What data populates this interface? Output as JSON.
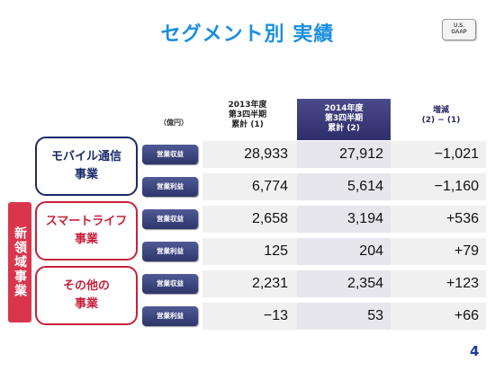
{
  "title": "セグメント別 実績",
  "badge": {
    "line1": "U.S.",
    "line2": "GAAP"
  },
  "unit": "（億円）",
  "columns": [
    {
      "line1": "2013年度",
      "line2": "第3四半期",
      "line3": "累計 (1)"
    },
    {
      "line1": "2014年度",
      "line2": "第3四半期",
      "line3": "累計 (2)"
    },
    {
      "line1": "増減",
      "line2": "(2) − (1)"
    }
  ],
  "new_domain_label": "新領域事業",
  "segments": [
    {
      "line1": "モバイル通信",
      "line2": "事業"
    },
    {
      "line1": "スマートライフ",
      "line2": "事業"
    },
    {
      "line1": "その他の",
      "line2": "事業"
    }
  ],
  "rows": [
    {
      "metric": "営業収益",
      "v2013": "28,933",
      "v2014": "27,912",
      "diff": "−1,021"
    },
    {
      "metric": "営業利益",
      "v2013": "6,774",
      "v2014": "5,614",
      "diff": "−1,160"
    },
    {
      "metric": "営業収益",
      "v2013": "2,658",
      "v2014": "3,194",
      "diff": "+536"
    },
    {
      "metric": "営業利益",
      "v2013": "125",
      "v2014": "204",
      "diff": "+79"
    },
    {
      "metric": "営業収益",
      "v2013": "2,231",
      "v2014": "2,354",
      "diff": "+123"
    },
    {
      "metric": "営業利益",
      "v2013": "−13",
      "v2014": "53",
      "diff": "+66"
    }
  ],
  "page_number": "4",
  "colors": {
    "title": "#1a8fe0",
    "header_fill": "#3a3a7a",
    "mobile_segment": "#1b2a6a",
    "new_domain": "#d9364d"
  }
}
